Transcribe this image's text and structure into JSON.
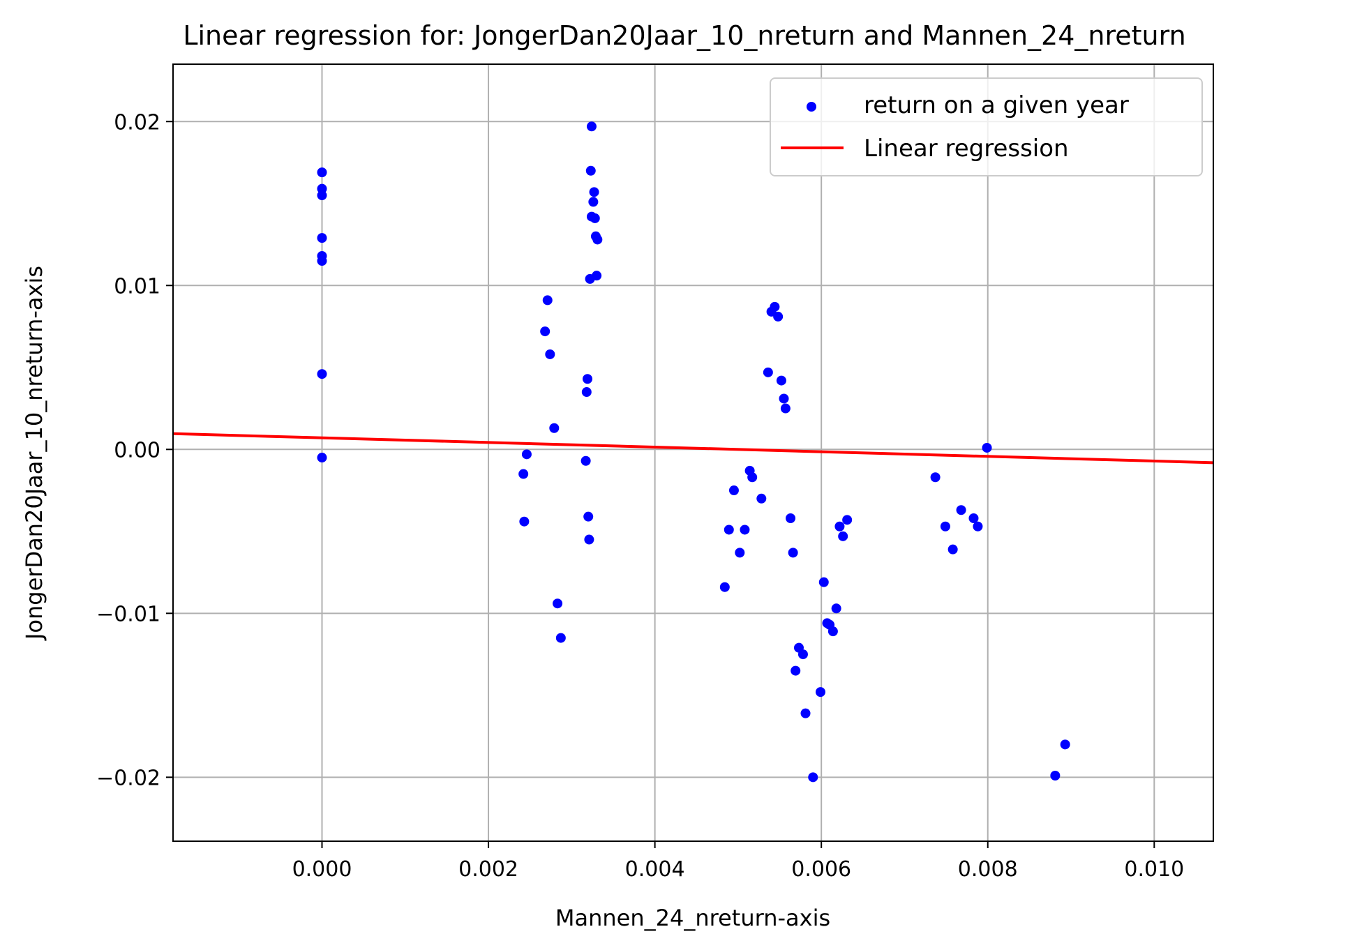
{
  "chart_data": {
    "type": "scatter",
    "title": "Linear regression for: JongerDan20Jaar_10_nreturn and Mannen_24_nreturn",
    "xlabel": "Mannen_24_nreturn-axis",
    "ylabel": "JongerDan20Jaar_10_nreturn-axis",
    "xlim": [
      -0.00179,
      0.01071
    ],
    "ylim": [
      -0.0239,
      0.0235
    ],
    "x_ticks": [
      0.0,
      0.002,
      0.004,
      0.006,
      0.008,
      0.01
    ],
    "x_tick_labels": [
      "0.000",
      "0.002",
      "0.004",
      "0.006",
      "0.008",
      "0.010"
    ],
    "y_ticks": [
      0.02,
      0.01,
      0.0,
      -0.01,
      -0.02
    ],
    "y_tick_labels": [
      "0.02",
      "0.01",
      "0.00",
      "−0.01",
      "−0.02"
    ],
    "grid": true,
    "legend_position": "top-right",
    "series": [
      {
        "name": "return on a given year",
        "kind": "scatter",
        "color": "#0000ff",
        "points": [
          [
            0.0,
            0.0169
          ],
          [
            0.0,
            0.0159
          ],
          [
            0.0,
            0.0155
          ],
          [
            0.0,
            0.0129
          ],
          [
            0.0,
            0.0118
          ],
          [
            0.0,
            0.0115
          ],
          [
            0.0,
            0.0046
          ],
          [
            0.0,
            -0.0005
          ],
          [
            0.00242,
            -0.0015
          ],
          [
            0.00243,
            -0.0044
          ],
          [
            0.00246,
            -0.0003
          ],
          [
            0.00268,
            0.0072
          ],
          [
            0.00271,
            0.0091
          ],
          [
            0.00274,
            0.0058
          ],
          [
            0.00279,
            0.0013
          ],
          [
            0.00283,
            -0.0094
          ],
          [
            0.00287,
            -0.0115
          ],
          [
            0.00317,
            -0.0007
          ],
          [
            0.00318,
            0.0035
          ],
          [
            0.00319,
            0.0043
          ],
          [
            0.0032,
            -0.0041
          ],
          [
            0.00321,
            -0.0055
          ],
          [
            0.00322,
            0.0104
          ],
          [
            0.00323,
            0.017
          ],
          [
            0.00324,
            0.0197
          ],
          [
            0.00324,
            0.0142
          ],
          [
            0.00326,
            0.0151
          ],
          [
            0.00327,
            0.0157
          ],
          [
            0.00328,
            0.0141
          ],
          [
            0.00329,
            0.013
          ],
          [
            0.0033,
            0.0106
          ],
          [
            0.00331,
            0.0128
          ],
          [
            0.00484,
            -0.0084
          ],
          [
            0.00489,
            -0.0049
          ],
          [
            0.00495,
            -0.0025
          ],
          [
            0.00502,
            -0.0063
          ],
          [
            0.00508,
            -0.0049
          ],
          [
            0.00514,
            -0.0013
          ],
          [
            0.00517,
            -0.0017
          ],
          [
            0.00528,
            -0.003
          ],
          [
            0.00536,
            0.0047
          ],
          [
            0.0054,
            0.0084
          ],
          [
            0.00544,
            0.0087
          ],
          [
            0.00548,
            0.0081
          ],
          [
            0.00552,
            0.0042
          ],
          [
            0.00555,
            0.0031
          ],
          [
            0.00557,
            0.0025
          ],
          [
            0.00563,
            -0.0042
          ],
          [
            0.00566,
            -0.0063
          ],
          [
            0.00569,
            -0.0135
          ],
          [
            0.00573,
            -0.0121
          ],
          [
            0.00578,
            -0.0125
          ],
          [
            0.00581,
            -0.0161
          ],
          [
            0.0059,
            -0.02
          ],
          [
            0.00599,
            -0.0148
          ],
          [
            0.00603,
            -0.0081
          ],
          [
            0.00607,
            -0.0106
          ],
          [
            0.0061,
            -0.0107
          ],
          [
            0.00614,
            -0.0111
          ],
          [
            0.00618,
            -0.0097
          ],
          [
            0.00622,
            -0.0047
          ],
          [
            0.00626,
            -0.0053
          ],
          [
            0.00631,
            -0.0043
          ],
          [
            0.00737,
            -0.0017
          ],
          [
            0.00749,
            -0.0047
          ],
          [
            0.00758,
            -0.0061
          ],
          [
            0.00768,
            -0.0037
          ],
          [
            0.00783,
            -0.0042
          ],
          [
            0.00788,
            -0.0047
          ],
          [
            0.00799,
            0.0001
          ],
          [
            0.00881,
            -0.0199
          ],
          [
            0.00893,
            -0.018
          ]
        ]
      },
      {
        "name": "Linear regression",
        "kind": "line",
        "color": "#ff0000",
        "x": [
          -0.00179,
          0.01071
        ],
        "y": [
          0.00096,
          -0.00081
        ]
      }
    ]
  }
}
